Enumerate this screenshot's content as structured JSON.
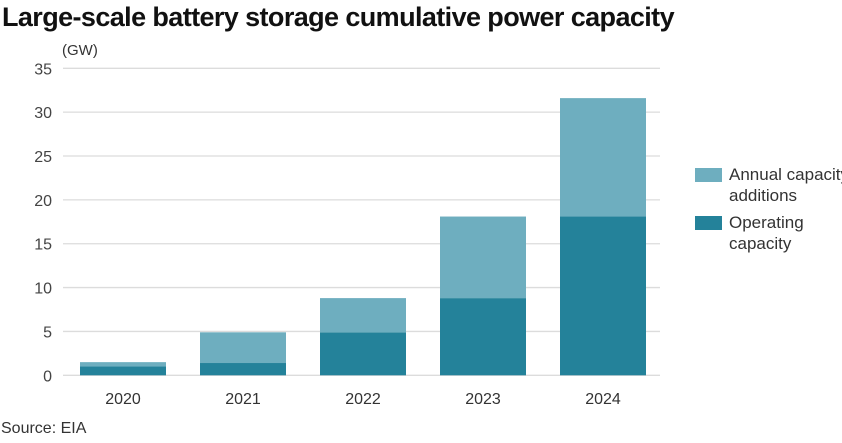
{
  "chart_data": {
    "type": "bar",
    "stacked": true,
    "title": "Large-scale battery storage cumulative power capacity",
    "ylabel": "(GW)",
    "xlabel": "",
    "categories": [
      "2020",
      "2021",
      "2022",
      "2023",
      "2024"
    ],
    "series": [
      {
        "name": "Operating capacity",
        "color": "#24829a",
        "values": [
          1.0,
          1.4,
          4.9,
          8.8,
          18.1
        ]
      },
      {
        "name": "Annual capacity additions",
        "color": "#6eaebf",
        "values": [
          0.5,
          3.5,
          3.9,
          9.3,
          13.5
        ]
      }
    ],
    "ylim": [
      0,
      35
    ],
    "yticks": [
      "0",
      "5",
      "10",
      "15",
      "20",
      "25",
      "30",
      "35"
    ],
    "grid": true,
    "legend": {
      "placement": "right",
      "entries": [
        {
          "label": "Annual capacity additions",
          "color": "#6eaebf"
        },
        {
          "label": "Operating capacity",
          "color": "#24829a"
        }
      ]
    },
    "source": "Source: EIA"
  }
}
